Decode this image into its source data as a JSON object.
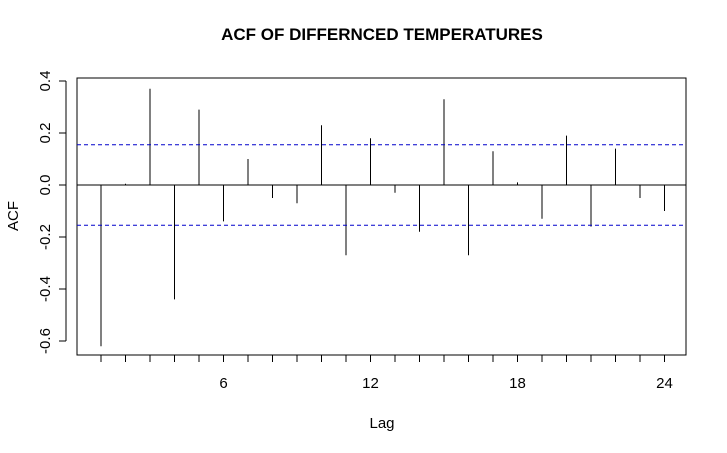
{
  "chart_data": {
    "type": "bar",
    "title": "ACF OF DIFFERNCED TEMPERATURES",
    "xlabel": "Lag",
    "ylabel": "ACF",
    "xlim": [
      0.5,
      24.5
    ],
    "ylim": [
      -0.66,
      0.4
    ],
    "x_ticks": [
      6,
      12,
      18,
      24
    ],
    "x_tick_labels": [
      "6",
      "12",
      "18",
      "24"
    ],
    "y_ticks": [
      -0.6,
      -0.4,
      -0.2,
      0.0,
      0.2,
      0.4
    ],
    "y_tick_labels": [
      "-0.6",
      "-0.4",
      "-0.2",
      "0.0",
      "0.2",
      "0.4"
    ],
    "lags": [
      1,
      2,
      3,
      4,
      5,
      6,
      7,
      8,
      9,
      10,
      11,
      12,
      13,
      14,
      15,
      16,
      17,
      18,
      19,
      20,
      21,
      22,
      23,
      24
    ],
    "values": [
      -0.62,
      0.005,
      0.37,
      -0.44,
      0.29,
      -0.14,
      0.1,
      -0.05,
      -0.07,
      0.23,
      -0.27,
      0.18,
      -0.03,
      -0.18,
      0.33,
      -0.27,
      0.13,
      0.01,
      -0.13,
      0.19,
      -0.16,
      0.14,
      -0.05,
      -0.1
    ],
    "confidence_bound": 0.155,
    "grid": false,
    "colors": {
      "bars": "#000000",
      "confidence": "#0000cc",
      "zero_line": "#000000"
    }
  }
}
